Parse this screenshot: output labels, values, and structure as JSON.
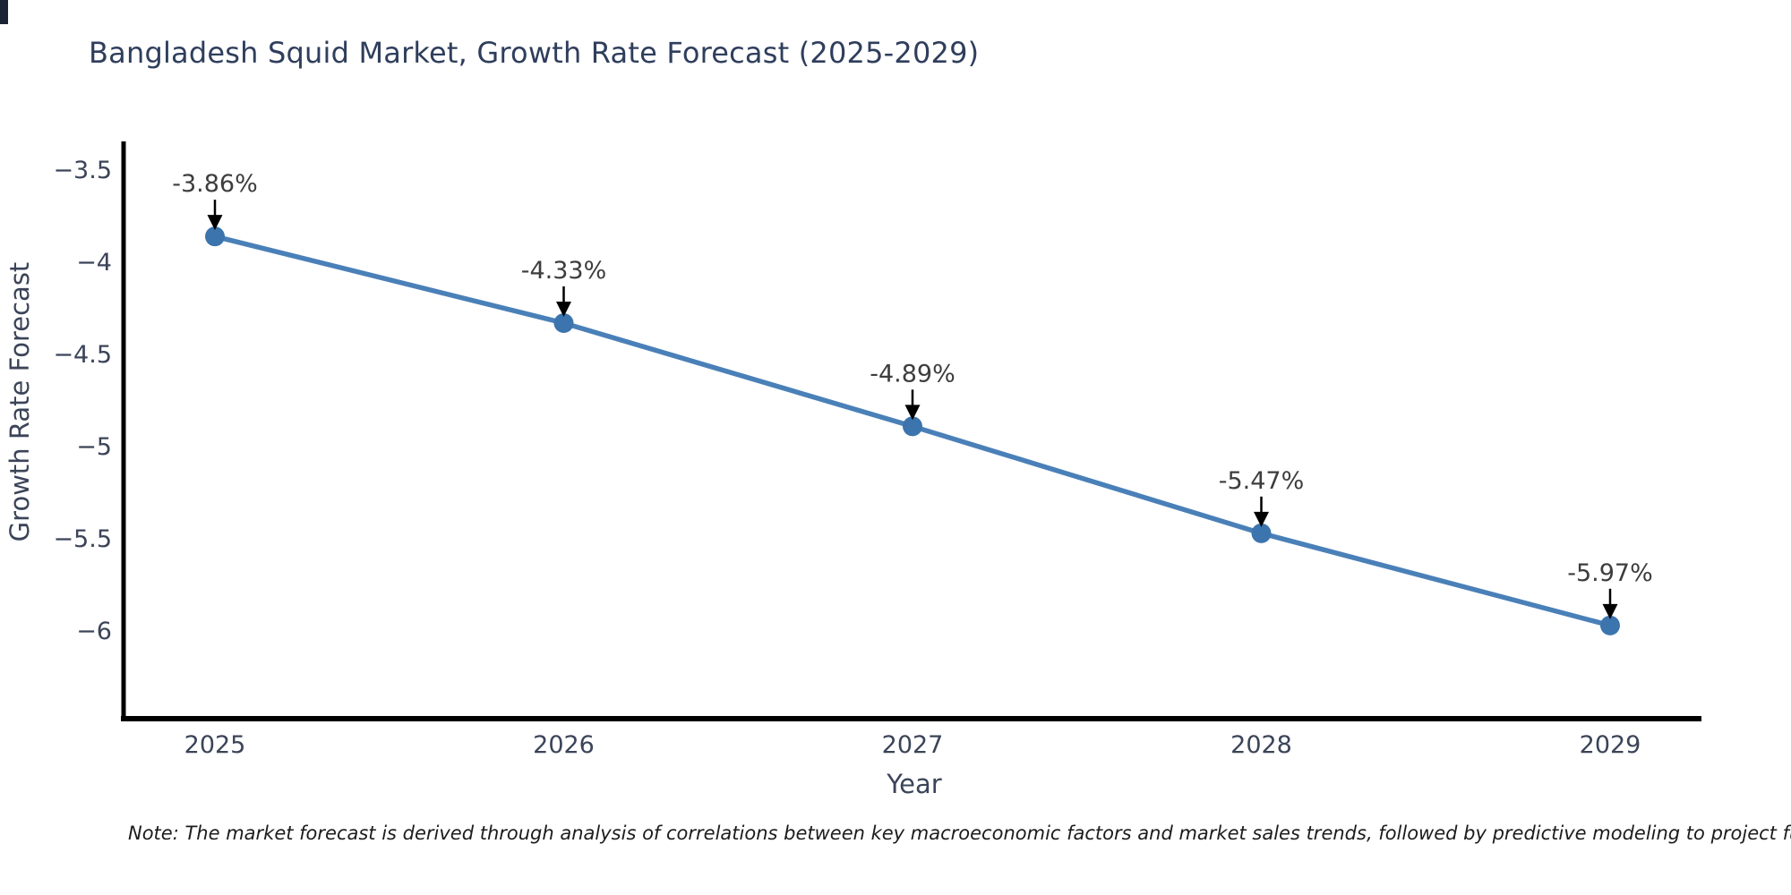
{
  "title": "Bangladesh Squid Market, Growth Rate Forecast (2025-2029)",
  "note": "Note: The market forecast is derived through analysis of correlations between key macroeconomic factors and market sales trends, followed by predictive modeling to project future sa",
  "chart_data": {
    "type": "line",
    "title": "Bangladesh Squid Market, Growth Rate Forecast (2025-2029)",
    "xlabel": "Year",
    "ylabel": "Growth Rate Forecast",
    "x": [
      2025,
      2026,
      2027,
      2028,
      2029
    ],
    "values": [
      -3.86,
      -4.33,
      -4.89,
      -5.47,
      -5.97
    ],
    "point_labels": [
      "-3.86%",
      "-4.33%",
      "-4.89%",
      "-5.47%",
      "-5.97%"
    ],
    "x_tick_labels": [
      "2025",
      "2026",
      "2027",
      "2028",
      "2029"
    ],
    "y_ticks": [
      -3.5,
      -4,
      -4.5,
      -5,
      -5.5,
      -6
    ],
    "y_tick_labels": [
      "−3.5",
      "−4",
      "−4.5",
      "−5",
      "−5.5",
      "−6"
    ],
    "ylim": [
      -6.47,
      -3.35
    ],
    "grid": false,
    "legend_position": "none",
    "annotation_style": "value label with black down-arrow above each point",
    "colors": {
      "line": "#4a80b8",
      "marker": "#3c74ad",
      "axis": "#000000",
      "tick_text": "#3b4458",
      "axis_title_text": "#3b4458",
      "title_text": "#2f3e5c",
      "annotation_text": "#3d3d3d",
      "arrow": "#000000",
      "background": "#ffffff"
    }
  }
}
